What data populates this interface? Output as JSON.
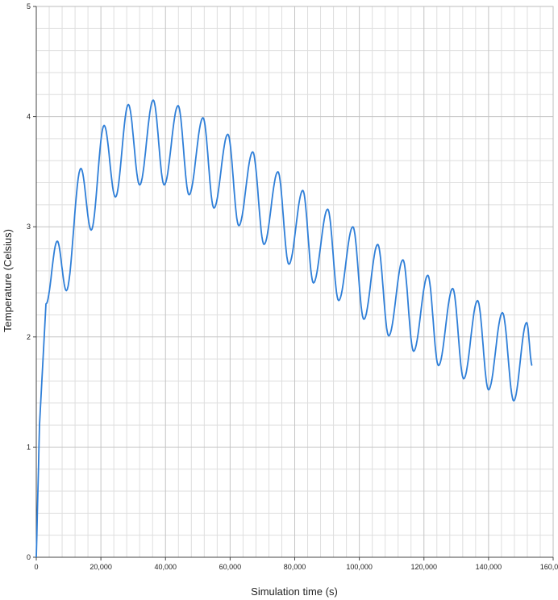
{
  "chart_data": {
    "type": "line",
    "title": "",
    "xlabel": "Simulation time (s)",
    "ylabel": "Temperature (Celsius)",
    "xlim": [
      0,
      160000
    ],
    "ylim": [
      0,
      5
    ],
    "x_ticks": [
      {
        "value": 0,
        "label": "0"
      },
      {
        "value": 20000,
        "label": "20,000"
      },
      {
        "value": 40000,
        "label": "40,000"
      },
      {
        "value": 60000,
        "label": "60,000"
      },
      {
        "value": 80000,
        "label": "80,000"
      },
      {
        "value": 100000,
        "label": "100,000"
      },
      {
        "value": 120000,
        "label": "120,000"
      },
      {
        "value": 140000,
        "label": "140,000"
      },
      {
        "value": 160000,
        "label": "160,000"
      }
    ],
    "y_ticks": [
      {
        "value": 0,
        "label": "0"
      },
      {
        "value": 1,
        "label": "1"
      },
      {
        "value": 2,
        "label": "2"
      },
      {
        "value": 3,
        "label": "3"
      },
      {
        "value": 4,
        "label": "4"
      },
      {
        "value": 5,
        "label": "5"
      }
    ],
    "grid": true,
    "minor_grid": true,
    "legend": "none",
    "colors": {
      "line": "#2f7fd8",
      "grid_major": "#c4c4c4",
      "grid_minor": "#dedede",
      "axis": "#444444"
    },
    "series": [
      {
        "x": [
          0,
          1000,
          3000,
          6500,
          9300,
          13800,
          17000,
          21000,
          24500,
          28500,
          32000,
          36200,
          39600,
          43900,
          47300,
          51600,
          55000,
          59300,
          62700,
          67000,
          70500,
          74800,
          78200,
          82500,
          85800,
          90200,
          93600,
          98000,
          101400,
          105700,
          109100,
          113500,
          116800,
          121200,
          124500,
          128900,
          132300,
          136600,
          140000,
          144300,
          147800,
          151800,
          153500
        ],
        "y": [
          0,
          1.2,
          2.3,
          2.87,
          2.42,
          3.53,
          2.97,
          3.92,
          3.27,
          4.11,
          3.38,
          4.15,
          3.38,
          4.1,
          3.29,
          3.99,
          3.17,
          3.84,
          3.01,
          3.68,
          2.84,
          3.5,
          2.66,
          3.33,
          2.49,
          3.16,
          2.33,
          3.0,
          2.16,
          2.84,
          2.01,
          2.7,
          1.87,
          2.56,
          1.74,
          2.44,
          1.62,
          2.33,
          1.52,
          2.22,
          1.42,
          2.13,
          1.74
        ]
      }
    ]
  }
}
